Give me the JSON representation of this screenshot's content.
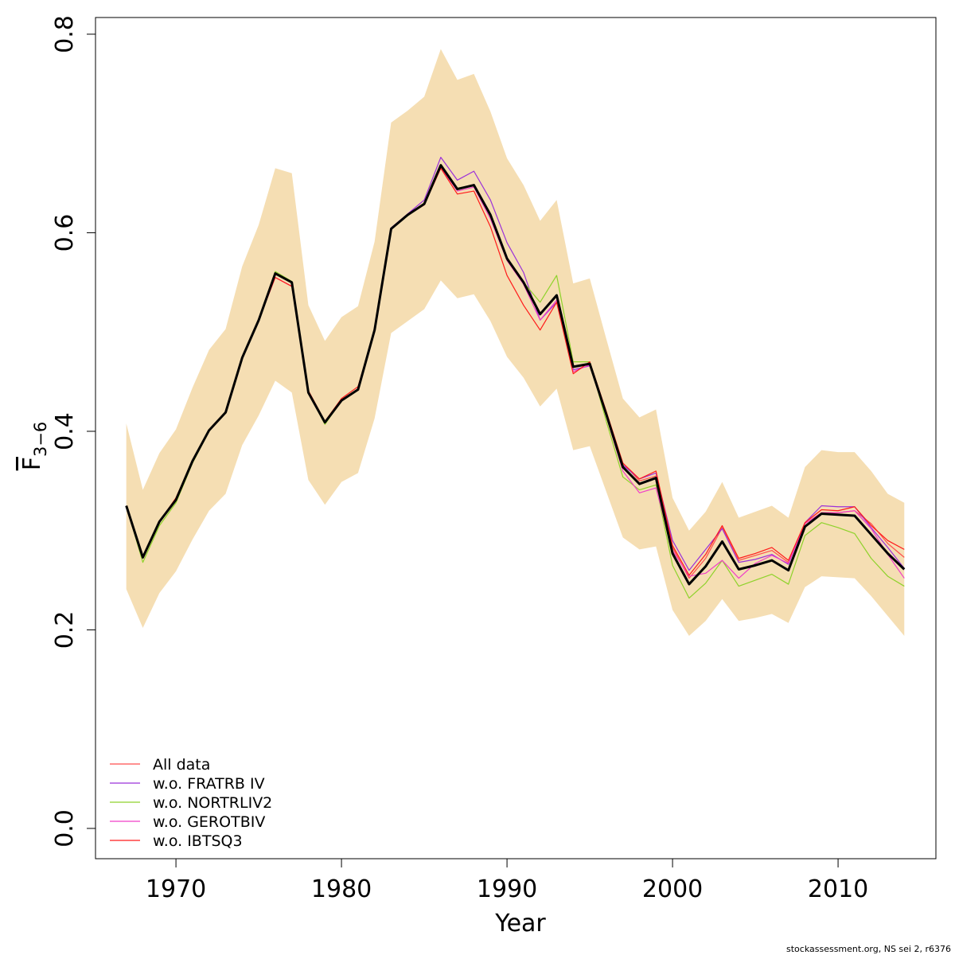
{
  "chart_data": {
    "type": "line",
    "xlabel": "Year",
    "ylabel": "F",
    "ylabel_sub": "3−6",
    "footer": "stockassessment.org, NS sei 2, r6376",
    "x": [
      1967,
      1968,
      1969,
      1970,
      1971,
      1972,
      1973,
      1974,
      1975,
      1976,
      1977,
      1978,
      1979,
      1980,
      1981,
      1982,
      1983,
      1984,
      1985,
      1986,
      1987,
      1988,
      1989,
      1990,
      1991,
      1992,
      1993,
      1994,
      1995,
      1996,
      1997,
      1998,
      1999,
      2000,
      2001,
      2002,
      2003,
      2004,
      2005,
      2006,
      2007,
      2008,
      2009,
      2010,
      2011,
      2012,
      2013,
      2014
    ],
    "xlim": [
      1965.14,
      2015.91
    ],
    "xticks": [
      1970,
      1980,
      1990,
      2000,
      2010
    ],
    "ylim": [
      -0.0305,
      0.8168
    ],
    "yticks": [
      {
        "value": 0,
        "label": "0.0"
      },
      0.2,
      0.4,
      0.6,
      0.8
    ],
    "legend": "bottom-left",
    "band": {
      "color": "#f5deb3",
      "upper": [
        0.408,
        0.341,
        0.378,
        0.402,
        0.444,
        0.482,
        0.503,
        0.566,
        0.608,
        0.665,
        0.66,
        0.527,
        0.491,
        0.515,
        0.526,
        0.591,
        0.711,
        0.723,
        0.737,
        0.785,
        0.754,
        0.76,
        0.722,
        0.675,
        0.648,
        0.612,
        0.633,
        0.549,
        0.554,
        0.493,
        0.433,
        0.414,
        0.422,
        0.333,
        0.3,
        0.319,
        0.349,
        0.313,
        0.319,
        0.325,
        0.313,
        0.364,
        0.381,
        0.379,
        0.379,
        0.36,
        0.337,
        0.328
      ],
      "lower": [
        0.241,
        0.202,
        0.237,
        0.259,
        0.291,
        0.32,
        0.337,
        0.386,
        0.416,
        0.451,
        0.439,
        0.351,
        0.326,
        0.349,
        0.358,
        0.413,
        0.499,
        0.511,
        0.523,
        0.552,
        0.534,
        0.538,
        0.511,
        0.475,
        0.454,
        0.425,
        0.443,
        0.381,
        0.385,
        0.339,
        0.293,
        0.281,
        0.284,
        0.22,
        0.194,
        0.209,
        0.231,
        0.209,
        0.212,
        0.216,
        0.207,
        0.243,
        0.254,
        0.253,
        0.252,
        0.234,
        0.214,
        0.194
      ]
    },
    "series": [
      {
        "name": "All data",
        "color": "#ff4d4d",
        "values": [
          0.325,
          0.273,
          0.309,
          0.331,
          0.37,
          0.401,
          0.419,
          0.474,
          0.512,
          0.559,
          0.55,
          0.439,
          0.409,
          0.431,
          0.442,
          0.502,
          0.604,
          0.618,
          0.629,
          0.668,
          0.644,
          0.648,
          0.618,
          0.574,
          0.55,
          0.518,
          0.537,
          0.465,
          0.468,
          0.417,
          0.368,
          0.35,
          0.355,
          0.283,
          0.252,
          0.272,
          0.303,
          0.27,
          0.275,
          0.28,
          0.268,
          0.307,
          0.318,
          0.318,
          0.32,
          0.307,
          0.287,
          0.273
        ]
      },
      {
        "name": "w.o. FRATRB IV",
        "color": "#9b30d9",
        "values": [
          0.325,
          0.272,
          0.309,
          0.331,
          0.37,
          0.401,
          0.419,
          0.474,
          0.512,
          0.559,
          0.55,
          0.439,
          0.409,
          0.431,
          0.442,
          0.502,
          0.605,
          0.619,
          0.633,
          0.676,
          0.653,
          0.662,
          0.633,
          0.59,
          0.56,
          0.512,
          0.53,
          0.462,
          0.466,
          0.417,
          0.366,
          0.352,
          0.358,
          0.29,
          0.26,
          0.281,
          0.302,
          0.268,
          0.271,
          0.276,
          0.266,
          0.308,
          0.325,
          0.324,
          0.324,
          0.303,
          0.283,
          0.262
        ]
      },
      {
        "name": "w.o. NORTRLIV2",
        "color": "#8ed22b",
        "values": [
          0.325,
          0.268,
          0.305,
          0.328,
          0.368,
          0.4,
          0.42,
          0.475,
          0.513,
          0.561,
          0.551,
          0.439,
          0.407,
          0.431,
          0.442,
          0.502,
          0.604,
          0.617,
          0.63,
          0.669,
          0.645,
          0.648,
          0.615,
          0.572,
          0.55,
          0.53,
          0.557,
          0.47,
          0.47,
          0.41,
          0.354,
          0.341,
          0.346,
          0.265,
          0.232,
          0.247,
          0.27,
          0.244,
          0.25,
          0.256,
          0.246,
          0.295,
          0.308,
          0.303,
          0.297,
          0.272,
          0.254,
          0.244
        ]
      },
      {
        "name": "w.o. GEROTBIV",
        "color": "#f03ec8",
        "values": [
          0.325,
          0.273,
          0.309,
          0.331,
          0.37,
          0.401,
          0.419,
          0.474,
          0.512,
          0.555,
          0.546,
          0.439,
          0.409,
          0.431,
          0.442,
          0.502,
          0.604,
          0.618,
          0.629,
          0.666,
          0.642,
          0.646,
          0.614,
          0.572,
          0.548,
          0.512,
          0.532,
          0.46,
          0.467,
          0.415,
          0.36,
          0.338,
          0.343,
          0.28,
          0.254,
          0.257,
          0.27,
          0.252,
          0.267,
          0.275,
          0.267,
          0.307,
          0.318,
          0.318,
          0.32,
          0.302,
          0.276,
          0.252
        ]
      },
      {
        "name": "w.o. IBTSQ3",
        "color": "#ff1a1a",
        "values": [
          0.325,
          0.273,
          0.309,
          0.333,
          0.37,
          0.401,
          0.419,
          0.474,
          0.512,
          0.555,
          0.546,
          0.441,
          0.41,
          0.433,
          0.445,
          0.502,
          0.604,
          0.618,
          0.628,
          0.665,
          0.639,
          0.642,
          0.606,
          0.557,
          0.527,
          0.502,
          0.53,
          0.458,
          0.47,
          0.42,
          0.368,
          0.352,
          0.36,
          0.285,
          0.255,
          0.276,
          0.305,
          0.272,
          0.277,
          0.283,
          0.27,
          0.308,
          0.321,
          0.32,
          0.324,
          0.305,
          0.29,
          0.281
        ]
      }
    ],
    "estimate": {
      "color": "#000000",
      "values": [
        0.325,
        0.273,
        0.309,
        0.331,
        0.37,
        0.401,
        0.419,
        0.474,
        0.512,
        0.559,
        0.55,
        0.439,
        0.409,
        0.431,
        0.442,
        0.502,
        0.604,
        0.618,
        0.629,
        0.668,
        0.644,
        0.648,
        0.618,
        0.574,
        0.55,
        0.518,
        0.537,
        0.465,
        0.468,
        0.417,
        0.364,
        0.347,
        0.353,
        0.277,
        0.246,
        0.264,
        0.289,
        0.261,
        0.265,
        0.27,
        0.26,
        0.304,
        0.317,
        0.316,
        0.315,
        0.296,
        0.277,
        0.261
      ]
    }
  }
}
